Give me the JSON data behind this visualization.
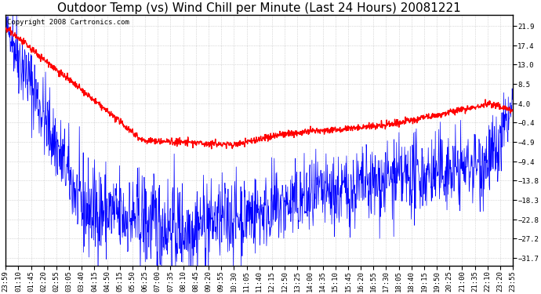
{
  "title": "Outdoor Temp (vs) Wind Chill per Minute (Last 24 Hours) 20081221",
  "copyright_text": "Copyright 2008 Cartronics.com",
  "yticks": [
    21.9,
    17.4,
    13.0,
    8.5,
    4.0,
    -0.4,
    -4.9,
    -9.4,
    -13.8,
    -18.3,
    -22.8,
    -27.2,
    -31.7
  ],
  "xtick_labels": [
    "23:59",
    "01:10",
    "01:45",
    "02:20",
    "02:55",
    "03:05",
    "03:40",
    "04:15",
    "04:50",
    "05:15",
    "05:50",
    "06:25",
    "07:00",
    "07:35",
    "08:10",
    "08:45",
    "09:20",
    "09:55",
    "10:30",
    "11:05",
    "11:40",
    "12:15",
    "12:50",
    "13:25",
    "14:00",
    "14:35",
    "15:10",
    "15:45",
    "16:20",
    "16:55",
    "17:30",
    "18:05",
    "18:40",
    "19:15",
    "19:50",
    "20:25",
    "21:00",
    "21:35",
    "22:10",
    "23:20",
    "23:55"
  ],
  "ylim_min": -33.5,
  "ylim_max": 24.5,
  "bg_color": "#ffffff",
  "grid_color": "#bbbbbb",
  "blue_color": "#0000ff",
  "red_color": "#ff0000",
  "title_fontsize": 11,
  "tick_fontsize": 6.5,
  "copyright_fontsize": 6.5
}
